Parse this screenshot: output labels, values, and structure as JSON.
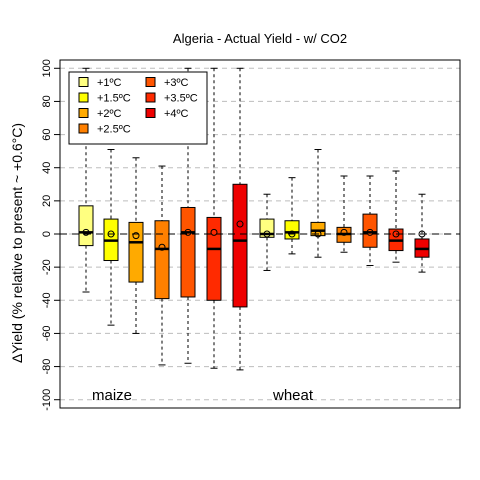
{
  "chart_data": {
    "type": "box",
    "title": "Algeria - Actual Yield - w/ CO2",
    "ylabel": "ΔYield (% relative to present ~ +0.6°C)",
    "xlabel": "",
    "ylim": [
      -105,
      105
    ],
    "yticks": [
      -100,
      -80,
      -60,
      -40,
      -20,
      0,
      20,
      40,
      60,
      80,
      100
    ],
    "grid": "horizontal-dashed",
    "legend_position": "top-left",
    "legend": [
      {
        "label": "+1ºC",
        "color": "#ffff80"
      },
      {
        "label": "+1.5ºC",
        "color": "#ffff00"
      },
      {
        "label": "+2ºC",
        "color": "#ffaa00"
      },
      {
        "label": "+2.5ºC",
        "color": "#ff8000"
      },
      {
        "label": "+3ºC",
        "color": "#ff5500"
      },
      {
        "label": "+3.5ºC",
        "color": "#ff2a00"
      },
      {
        "label": "+4ºC",
        "color": "#ee0000"
      }
    ],
    "groups": [
      {
        "label": "maize",
        "boxes": [
          {
            "level": "+1ºC",
            "color": "#ffff80",
            "whisker_low": -35,
            "q1": -7,
            "median": 1,
            "q3": 17,
            "whisker_high": 100,
            "mean": 1
          },
          {
            "level": "+1.5ºC",
            "color": "#ffff00",
            "whisker_low": -55,
            "q1": -16,
            "median": -4,
            "q3": 9,
            "whisker_high": 51,
            "mean": 0
          },
          {
            "level": "+2ºC",
            "color": "#ffaa00",
            "whisker_low": -60,
            "q1": -29,
            "median": -5,
            "q3": 7,
            "whisker_high": 46,
            "mean": -1
          },
          {
            "level": "+2.5ºC",
            "color": "#ff8000",
            "whisker_low": -79,
            "q1": -39,
            "median": -9,
            "q3": 8,
            "whisker_high": 41,
            "mean": -8
          },
          {
            "level": "+3ºC",
            "color": "#ff5500",
            "whisker_low": -78,
            "q1": -38,
            "median": 1,
            "q3": 16,
            "whisker_high": 100,
            "mean": 1
          },
          {
            "level": "+3.5ºC",
            "color": "#ff2a00",
            "whisker_low": -81,
            "q1": -40,
            "median": -9,
            "q3": 10,
            "whisker_high": 100,
            "mean": 1
          },
          {
            "level": "+4ºC",
            "color": "#ee0000",
            "whisker_low": -82,
            "q1": -44,
            "median": -4,
            "q3": 30,
            "whisker_high": 100,
            "mean": 6
          }
        ]
      },
      {
        "label": "wheat",
        "boxes": [
          {
            "level": "+1ºC",
            "color": "#ffff80",
            "whisker_low": -22,
            "q1": -2,
            "median": 0,
            "q3": 9,
            "whisker_high": 24,
            "mean": 0
          },
          {
            "level": "+1.5ºC",
            "color": "#ffff00",
            "whisker_low": -12,
            "q1": -3,
            "median": 1,
            "q3": 8,
            "whisker_high": 34,
            "mean": 0
          },
          {
            "level": "+2ºC",
            "color": "#ffaa00",
            "whisker_low": -14,
            "q1": -1,
            "median": 2,
            "q3": 7,
            "whisker_high": 51,
            "mean": 0
          },
          {
            "level": "+2.5ºC",
            "color": "#ff8000",
            "whisker_low": -11,
            "q1": -5,
            "median": 0,
            "q3": 4,
            "whisker_high": 35,
            "mean": 1
          },
          {
            "level": "+3ºC",
            "color": "#ff5500",
            "whisker_low": -19,
            "q1": -8,
            "median": 1,
            "q3": 12,
            "whisker_high": 35,
            "mean": 1
          },
          {
            "level": "+3.5ºC",
            "color": "#ff2a00",
            "whisker_low": -17,
            "q1": -10,
            "median": -4,
            "q3": 3,
            "whisker_high": 38,
            "mean": 0
          },
          {
            "level": "+4ºC",
            "color": "#ee0000",
            "whisker_low": -23,
            "q1": -14,
            "median": -9,
            "q3": -3,
            "whisker_high": 24,
            "mean": 0
          }
        ]
      }
    ]
  }
}
